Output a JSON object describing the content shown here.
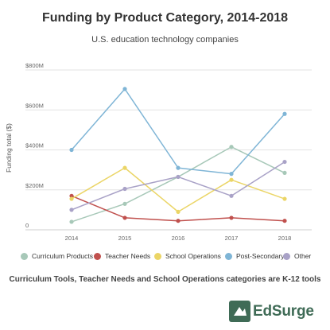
{
  "header": {
    "title": "Funding by Product Category, 2014-2018",
    "subtitle": "U.S. education technology companies"
  },
  "footnote": "Curriculum Tools, Teacher Needs and School Operations categories are K-12 tools",
  "brand": {
    "name": "EdSurge",
    "color": "#3f6b56"
  },
  "chart_data": {
    "type": "line",
    "title": "Funding by Product Category, 2014-2018",
    "subtitle": "U.S. education technology companies",
    "xlabel": "",
    "ylabel": "Funding total ($)",
    "x": [
      "2014",
      "2015",
      "2016",
      "2017",
      "2018"
    ],
    "y_ticks": [
      "0",
      "$200M",
      "$400M",
      "$600M",
      "$800M"
    ],
    "y_tick_values": [
      0,
      200,
      400,
      600,
      800
    ],
    "ylim": [
      0,
      800
    ],
    "grid": true,
    "legend_position": "bottom",
    "series": [
      {
        "name": "Curriculum Products",
        "color": "#a7c8b8",
        "values": [
          40,
          130,
          265,
          415,
          285
        ]
      },
      {
        "name": "Teacher Needs",
        "color": "#c0504d",
        "values": [
          170,
          60,
          45,
          60,
          45
        ]
      },
      {
        "name": "School Operations",
        "color": "#ebd566",
        "values": [
          155,
          310,
          90,
          250,
          155
        ]
      },
      {
        "name": "Post-Secondary",
        "color": "#7fb5d6",
        "values": [
          400,
          705,
          310,
          280,
          580
        ]
      },
      {
        "name": "Other",
        "color": "#a9a2c7",
        "values": [
          100,
          205,
          265,
          170,
          340
        ]
      }
    ]
  }
}
